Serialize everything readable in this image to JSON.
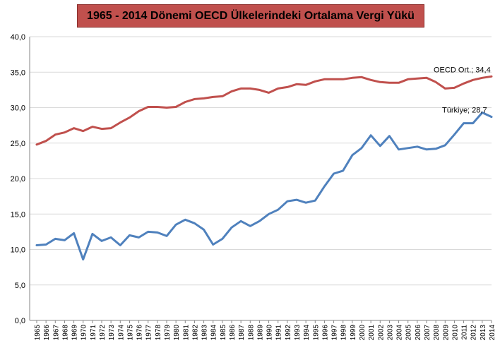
{
  "chart_data": {
    "type": "line",
    "title": "1965 - 2014 Dönemi OECD Ülkelerindeki Ortalama Vergi Yükü",
    "xlabel": "",
    "ylabel": "",
    "ylim": [
      0,
      40
    ],
    "yticks": [
      "0,0",
      "5,0",
      "10,0",
      "15,0",
      "20,0",
      "25,0",
      "30,0",
      "35,0",
      "40,0"
    ],
    "grid": true,
    "x": [
      "1965",
      "1966",
      "1967",
      "1968",
      "1969",
      "1970",
      "1971",
      "1972",
      "1973",
      "1974",
      "1975",
      "1976",
      "1977",
      "1978",
      "1979",
      "1980",
      "1981",
      "1982",
      "1983",
      "1984",
      "1985",
      "1986",
      "1987",
      "1988",
      "1989",
      "1990",
      "1991",
      "1992",
      "1993",
      "1994",
      "1995",
      "1996",
      "1997",
      "1998",
      "1999",
      "2000",
      "2001",
      "2002",
      "2003",
      "2004",
      "2005",
      "2006",
      "2007",
      "2008",
      "2009",
      "2010",
      "2011",
      "2012",
      "2013",
      "2014"
    ],
    "series": [
      {
        "color": "#c0504d",
        "end_label": "OECD Ort.; 34,4",
        "values": [
          24.8,
          25.3,
          26.2,
          26.5,
          27.1,
          26.7,
          27.3,
          27.0,
          27.1,
          27.9,
          28.6,
          29.5,
          30.1,
          30.1,
          30.0,
          30.1,
          30.8,
          31.2,
          31.3,
          31.5,
          31.6,
          32.3,
          32.7,
          32.7,
          32.5,
          32.1,
          32.7,
          32.9,
          33.3,
          33.2,
          33.7,
          34.0,
          34.0,
          34.0,
          34.2,
          34.3,
          33.9,
          33.6,
          33.5,
          33.5,
          34.0,
          34.1,
          34.2,
          33.6,
          32.7,
          32.8,
          33.4,
          33.9,
          34.2,
          34.4
        ]
      },
      {
        "color": "#4f81bd",
        "end_label": "Türkiye; 28,7",
        "values": [
          10.6,
          10.7,
          11.5,
          11.3,
          12.3,
          8.6,
          12.2,
          11.2,
          11.7,
          10.6,
          12.0,
          11.7,
          12.5,
          12.4,
          11.9,
          13.5,
          14.2,
          13.7,
          12.8,
          10.7,
          11.5,
          13.1,
          14.0,
          13.3,
          14.0,
          15.0,
          15.6,
          16.8,
          17.0,
          16.6,
          16.9,
          18.9,
          20.7,
          21.1,
          23.3,
          24.3,
          26.1,
          24.6,
          26.0,
          24.1,
          24.3,
          24.5,
          24.1,
          24.2,
          24.7,
          26.2,
          27.8,
          27.8,
          29.3,
          28.7
        ]
      }
    ]
  }
}
